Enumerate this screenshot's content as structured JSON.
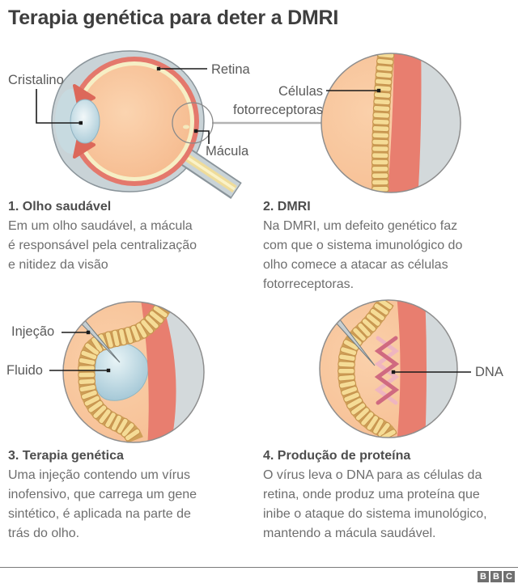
{
  "title": "Terapia genética para deter a DMRI",
  "eye_labels": {
    "cristalino": "Cristalino",
    "retina": "Retina",
    "macula": "Mácula",
    "celulas_line1": "Células",
    "celulas_line2": "fotorreceptoras"
  },
  "therapy_labels": {
    "injecao": "Injeção",
    "fluido": "Fluido",
    "dna": "DNA"
  },
  "sections": [
    {
      "heading": "1. Olho saudável",
      "body": "Em um olho saudável, a mácula\né responsável pela centralização\ne nitidez da visão"
    },
    {
      "heading": "2. DMRI",
      "body": "Na DMRI, um defeito genético faz\ncom que o sistema imunológico do\nolho comece a atacar as células\nfotorreceptoras."
    },
    {
      "heading": "3. Terapia genética",
      "body": "Uma injeção contendo um vírus\ninofensivo, que carrega um gene\nsintético, é aplicada na parte de\ntrás do olho."
    },
    {
      "heading": "4. Produção de proteína",
      "body": "O vírus leva o DNA para as células da\nretina, onde produz uma proteína que\ninibe o ataque do sistema imunológico,\nmantendo a mácula saudável."
    }
  ],
  "footer": {
    "logo_letters": [
      "B",
      "B",
      "C"
    ]
  },
  "colors": {
    "title_text": "#3E3E3E",
    "body_text": "#6E6E6E",
    "sclera_gray": "#C9D3D7",
    "band_gray": "#D3D9DB",
    "choroid_red": "#E87E6F",
    "vitreous_peach": "#F6BC90",
    "retina_cream": "#F6EFC5",
    "cell_yellow": "#F5DC96",
    "cell_outline_tan": "#C6934E",
    "lens_blue": "#ABCBD8",
    "fluid_blue": "#A9CBD8",
    "dna_pink_dark": "#D06A80",
    "dna_pink_light": "#EFB5C0",
    "logo_gray": "#6F6F6F"
  }
}
